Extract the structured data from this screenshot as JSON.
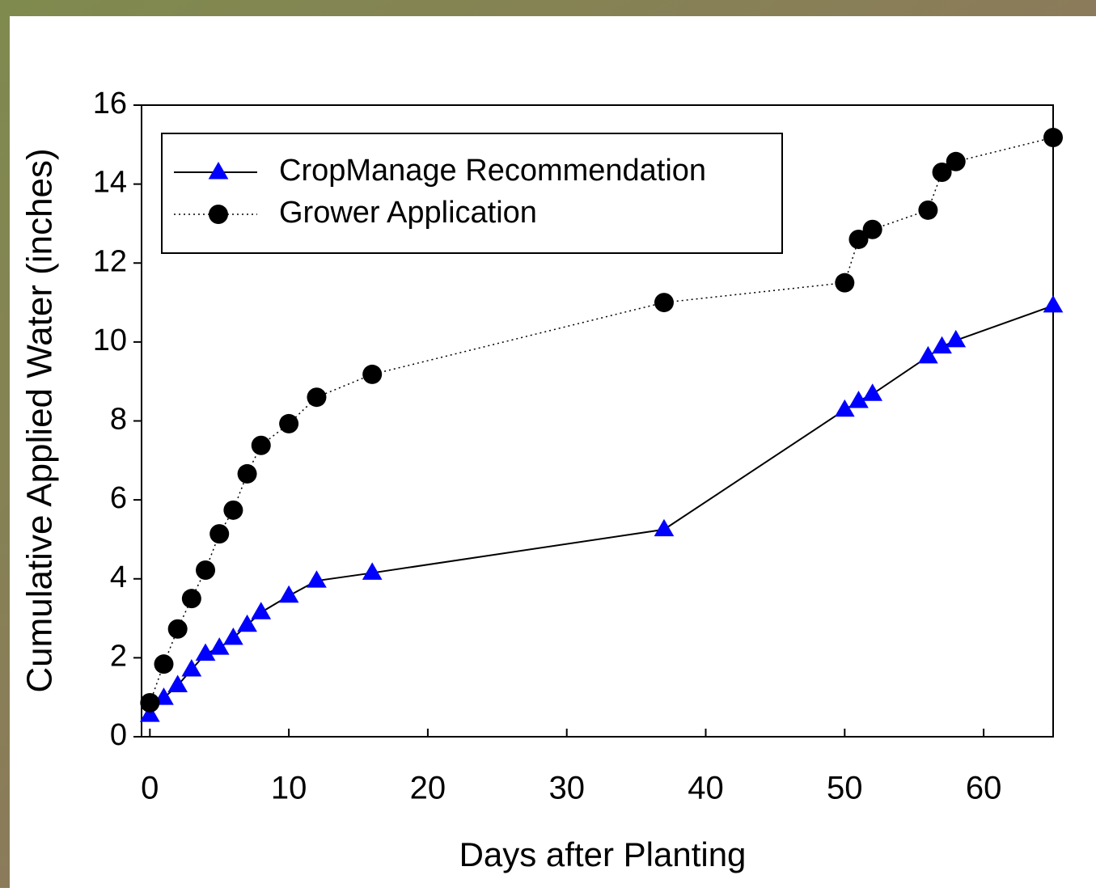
{
  "chart_data": {
    "type": "line",
    "xlabel": "Days after Planting",
    "ylabel": "Cumulative Applied Water (inches)",
    "xlim": [
      -0.6,
      65
    ],
    "ylim": [
      0,
      16
    ],
    "xticks": [
      0,
      10,
      20,
      30,
      40,
      50,
      60
    ],
    "yticks": [
      0,
      2,
      4,
      6,
      8,
      10,
      12,
      14,
      16
    ],
    "grid": false,
    "legend": "upper left",
    "series": [
      {
        "name": "CropManage Recommendation",
        "color": "#0000ff",
        "line_color": "#000000",
        "linestyle": "solid",
        "marker": "triangle",
        "x": [
          0,
          1,
          2,
          3,
          4,
          5,
          6,
          7,
          8,
          10,
          12,
          16,
          37,
          50,
          51,
          52,
          56,
          57,
          58,
          65
        ],
        "values": [
          0.55,
          0.98,
          1.3,
          1.7,
          2.1,
          2.25,
          2.5,
          2.83,
          3.15,
          3.57,
          3.95,
          4.15,
          5.25,
          8.28,
          8.5,
          8.68,
          9.63,
          9.88,
          10.04,
          10.92
        ]
      },
      {
        "name": "Grower Application",
        "color": "#000000",
        "line_color": "#000000",
        "linestyle": "dotted",
        "marker": "circle",
        "x": [
          0,
          1,
          2,
          3,
          4,
          5,
          6,
          7,
          8,
          10,
          12,
          16,
          37,
          50,
          51,
          52,
          56,
          57,
          58,
          65
        ],
        "values": [
          0.86,
          1.84,
          2.73,
          3.5,
          4.22,
          5.14,
          5.74,
          6.66,
          7.38,
          7.93,
          8.6,
          9.18,
          11.0,
          11.5,
          12.6,
          12.85,
          13.34,
          14.3,
          14.57,
          15.18
        ]
      }
    ]
  }
}
